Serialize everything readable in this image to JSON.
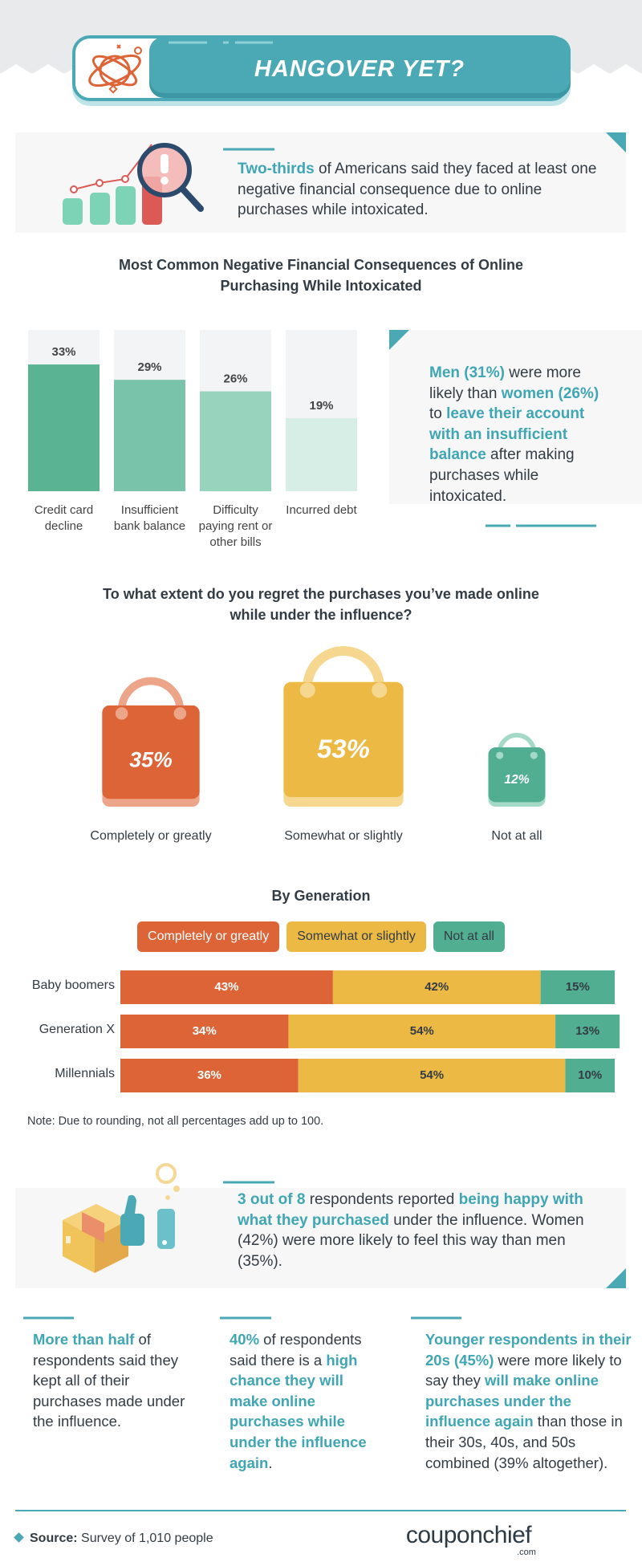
{
  "header": {
    "title": "HANGOVER YET?"
  },
  "intro": {
    "segments": [
      {
        "text": "Two-thirds",
        "em": true
      },
      {
        "text": " of Americans said they faced at least one negative financial consequence due to online purchases while intoxicated."
      }
    ]
  },
  "consequences": {
    "type": "bar",
    "title": "Most Common Negative Financial Consequences of Online Purchasing While Intoxicated",
    "categories": [
      "Credit card decline",
      "Insufficient bank balance",
      "Difficulty paying rent or other bills",
      "Incurred debt"
    ],
    "values": [
      33,
      29,
      26,
      19
    ],
    "value_labels": [
      "33%",
      "29%",
      "26%",
      "19%"
    ],
    "colors": [
      "#5ab393",
      "#78c3a9",
      "#98d3be",
      "#d6eee5"
    ],
    "ylim": [
      0,
      42
    ]
  },
  "callout": {
    "segments": [
      {
        "text": "Men (31%)",
        "em": true
      },
      {
        "text": " were more likely than "
      },
      {
        "text": "women (26%)",
        "em": true
      },
      {
        "text": " to "
      },
      {
        "text": "leave their account with an insufficient balance",
        "em": true
      },
      {
        "text": " after making purchases while intoxicated."
      }
    ]
  },
  "regret": {
    "type": "bag",
    "title": "To what extent do you regret the purchases you’ve made online while under the influence?",
    "categories": [
      "Completely or greatly",
      "Somewhat or slightly",
      "Not at all"
    ],
    "values": [
      35,
      53,
      12
    ],
    "value_labels": [
      "35%",
      "53%",
      "12%"
    ],
    "colors": [
      "#dc6437",
      "#ebb944",
      "#52ae91"
    ]
  },
  "generation": {
    "type": "stacked_bar",
    "title": "By Generation",
    "categories": [
      "Baby boomers",
      "Generation X",
      "Millennials"
    ],
    "xlim": [
      0,
      100
    ],
    "series": [
      {
        "name": "Completely or greatly",
        "color": "#dc6437",
        "values": [
          43,
          34,
          36
        ],
        "value_labels": [
          "43%",
          "34%",
          "36%"
        ]
      },
      {
        "name": "Somewhat or slightly",
        "color": "#ebb944",
        "values": [
          42,
          54,
          54
        ],
        "value_labels": [
          "42%",
          "54%",
          "54%"
        ]
      },
      {
        "name": "Not at all",
        "color": "#52ae91",
        "values": [
          15,
          13,
          10
        ],
        "value_labels": [
          "15%",
          "13%",
          "10%"
        ]
      }
    ],
    "note": "Note: Due to rounding, not all percentages add up to 100."
  },
  "happy": {
    "segments": [
      {
        "text": "3 out of 8",
        "em": true
      },
      {
        "text": " respondents reported "
      },
      {
        "text": "being happy with what they purchased",
        "em": true
      },
      {
        "text": " under the influence. Women (42%) were more likely to feel this way than men (35%)."
      }
    ]
  },
  "facts": [
    {
      "segments": [
        {
          "text": "More than half",
          "em": true
        },
        {
          "text": " of respondents said they kept all of their purchases made under the influence."
        }
      ]
    },
    {
      "segments": [
        {
          "text": "40%",
          "em": true
        },
        {
          "text": " of respondents said there is a "
        },
        {
          "text": "high chance they will make online purchases while under the influence again",
          "em": true
        },
        {
          "text": "."
        }
      ]
    },
    {
      "segments": [
        {
          "text": "Younger respondents in their 20s (45%)",
          "em": true
        },
        {
          "text": " were more likely to say they "
        },
        {
          "text": "will make online purchases under the influence again",
          "em": true
        },
        {
          "text": " than those in their 30s, 40s, and 50s combined (39% altogether)."
        }
      ]
    }
  ],
  "footer": {
    "source_label": "Source:",
    "source": " Survey of 1,010 people",
    "brand": "couponchief",
    "brand_suffix": ".com"
  }
}
